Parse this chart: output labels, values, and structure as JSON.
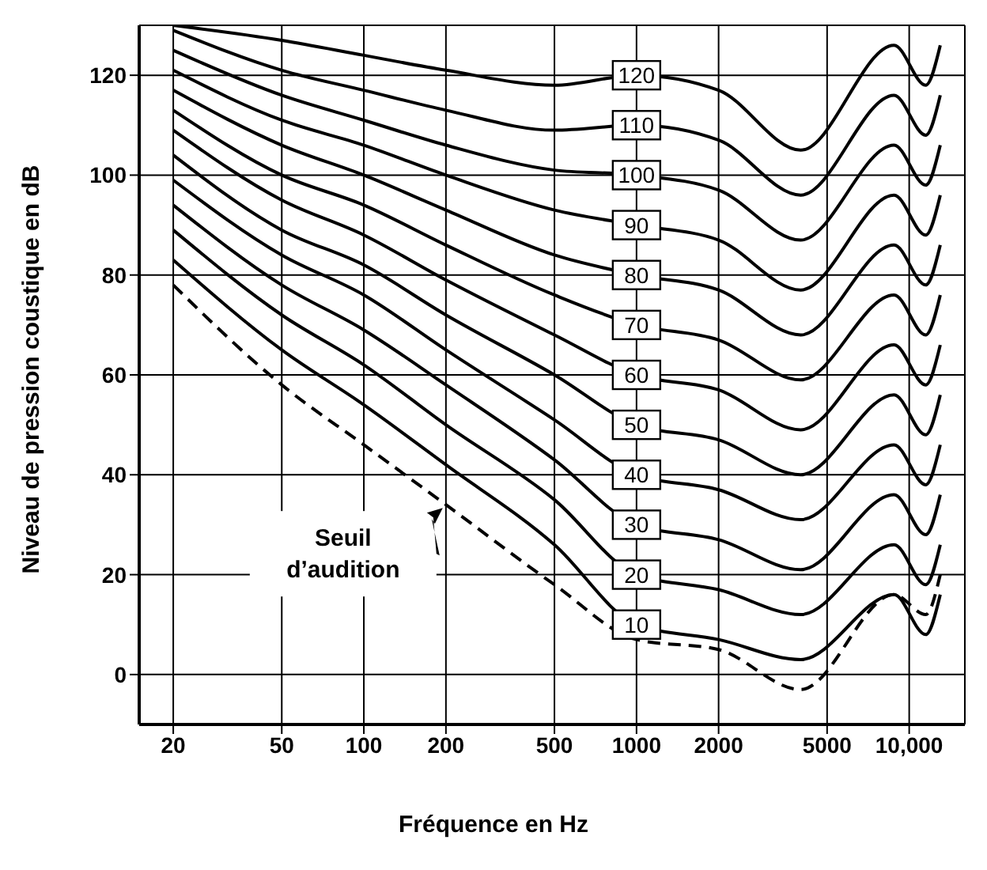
{
  "chart_data": {
    "type": "line",
    "xlabel": "Fréquence en Hz",
    "ylabel": "Niveau de pression coustique en dB",
    "log": "x",
    "grid": true,
    "xlim": [
      15,
      16000
    ],
    "xticks": [
      20,
      50,
      100,
      200,
      500,
      1000,
      2000,
      5000,
      {
        "value": 10000,
        "label": "10,000"
      }
    ],
    "ylim": [
      -10,
      130
    ],
    "yticks": [
      0,
      20,
      40,
      60,
      80,
      100,
      120
    ],
    "x": [
      20,
      50,
      100,
      200,
      500,
      1000,
      2000,
      4000,
      8800,
      11500,
      13000
    ],
    "series": [
      {
        "name": "Seuil d’audition",
        "color": "#000000",
        "line_style": "dashed",
        "values": [
          78,
          58,
          46,
          34,
          18,
          7,
          5,
          -3,
          16,
          12,
          20
        ]
      },
      {
        "name": "10",
        "color": "#000000",
        "values": [
          83,
          65,
          54,
          42,
          26,
          10,
          7,
          3,
          16,
          8,
          16
        ]
      },
      {
        "name": "20",
        "color": "#000000",
        "values": [
          89,
          72,
          62,
          50,
          35,
          20,
          17,
          12,
          26,
          18,
          26
        ]
      },
      {
        "name": "30",
        "color": "#000000",
        "values": [
          94,
          78,
          69,
          58,
          43,
          30,
          27,
          21,
          36,
          28,
          36
        ]
      },
      {
        "name": "40",
        "color": "#000000",
        "values": [
          99,
          84,
          76,
          65,
          51,
          40,
          37,
          31,
          46,
          38,
          46
        ]
      },
      {
        "name": "50",
        "color": "#000000",
        "values": [
          104,
          89,
          82,
          72,
          60,
          50,
          47,
          40,
          56,
          48,
          56
        ]
      },
      {
        "name": "60",
        "color": "#000000",
        "values": [
          109,
          95,
          88,
          79,
          68,
          60,
          57,
          49,
          66,
          58,
          66
        ]
      },
      {
        "name": "70",
        "color": "#000000",
        "values": [
          113,
          100,
          94,
          86,
          76,
          70,
          67,
          59,
          76,
          68,
          76
        ]
      },
      {
        "name": "80",
        "color": "#000000",
        "values": [
          117,
          106,
          100,
          93,
          84,
          80,
          77,
          68,
          86,
          78,
          86
        ]
      },
      {
        "name": "90",
        "color": "#000000",
        "values": [
          121,
          111,
          106,
          100,
          93,
          90,
          87,
          77,
          96,
          88,
          96
        ]
      },
      {
        "name": "100",
        "color": "#000000",
        "values": [
          125,
          116,
          111,
          106,
          101,
          100,
          97,
          87,
          106,
          98,
          106
        ]
      },
      {
        "name": "110",
        "color": "#000000",
        "values": [
          129,
          121,
          117,
          113,
          109,
          110,
          107,
          96,
          116,
          108,
          116
        ]
      },
      {
        "name": "120",
        "color": "#000000",
        "values": [
          130,
          127,
          124,
          121,
          118,
          120,
          117,
          105,
          126,
          118,
          126
        ]
      }
    ]
  }
}
